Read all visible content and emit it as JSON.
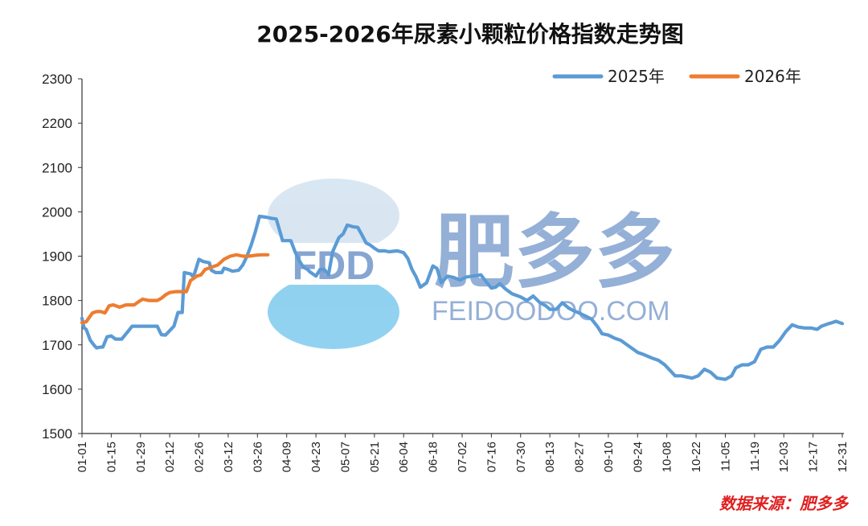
{
  "chart_data": {
    "type": "line",
    "title": "2025-2026年尿素小颗粒价格指数走势图",
    "xlabel": "",
    "ylabel": "",
    "ylim": [
      1500,
      2300
    ],
    "yticks": [
      1500,
      1600,
      1700,
      1800,
      1900,
      2000,
      2100,
      2200,
      2300
    ],
    "x_axis_type": "month-day",
    "xticks": [
      "01-01",
      "01-15",
      "01-29",
      "02-12",
      "02-26",
      "03-12",
      "03-26",
      "04-09",
      "04-23",
      "05-07",
      "05-21",
      "06-04",
      "06-18",
      "07-02",
      "07-16",
      "07-30",
      "08-13",
      "08-27",
      "09-10",
      "09-24",
      "10-08",
      "10-22",
      "11-05",
      "11-19",
      "12-03",
      "12-17",
      "12-31"
    ],
    "grid": false,
    "legend_position": "top-right",
    "colors": {
      "2025年": "#5b9bd5",
      "2026年": "#ed7d31"
    },
    "series": [
      {
        "name": "2025年",
        "points": [
          [
            "01-01",
            1760
          ],
          [
            "01-02",
            1738
          ],
          [
            "01-03",
            1735
          ],
          [
            "01-05",
            1710
          ],
          [
            "01-07",
            1698
          ],
          [
            "01-08",
            1693
          ],
          [
            "01-10",
            1695
          ],
          [
            "01-11",
            1695
          ],
          [
            "01-13",
            1718
          ],
          [
            "01-15",
            1720
          ],
          [
            "01-17",
            1713
          ],
          [
            "01-20",
            1713
          ],
          [
            "01-23",
            1730
          ],
          [
            "01-25",
            1742
          ],
          [
            "02-01",
            1742
          ],
          [
            "02-06",
            1742
          ],
          [
            "02-08",
            1723
          ],
          [
            "02-10",
            1722
          ],
          [
            "02-14",
            1742
          ],
          [
            "02-16",
            1773
          ],
          [
            "02-18",
            1773
          ],
          [
            "02-19",
            1863
          ],
          [
            "02-22",
            1860
          ],
          [
            "02-23",
            1855
          ],
          [
            "02-24",
            1862
          ],
          [
            "02-26",
            1893
          ],
          [
            "02-28",
            1888
          ],
          [
            "03-03",
            1885
          ],
          [
            "03-04",
            1868
          ],
          [
            "03-06",
            1863
          ],
          [
            "03-09",
            1863
          ],
          [
            "03-10",
            1873
          ],
          [
            "03-12",
            1870
          ],
          [
            "03-14",
            1866
          ],
          [
            "03-17",
            1868
          ],
          [
            "03-19",
            1880
          ],
          [
            "03-21",
            1900
          ],
          [
            "03-23",
            1925
          ],
          [
            "03-25",
            1955
          ],
          [
            "03-27",
            1990
          ],
          [
            "03-30",
            1988
          ],
          [
            "04-02",
            1985
          ],
          [
            "04-04",
            1984
          ],
          [
            "04-06",
            1952
          ],
          [
            "04-07",
            1935
          ],
          [
            "04-09",
            1935
          ],
          [
            "04-11",
            1935
          ],
          [
            "04-13",
            1910
          ],
          [
            "04-15",
            1890
          ],
          [
            "04-17",
            1875
          ],
          [
            "04-19",
            1870
          ],
          [
            "04-20",
            1865
          ],
          [
            "04-23",
            1855
          ],
          [
            "04-25",
            1870
          ],
          [
            "04-27",
            1870
          ],
          [
            "04-29",
            1858
          ],
          [
            "05-01",
            1910
          ],
          [
            "05-04",
            1942
          ],
          [
            "05-06",
            1950
          ],
          [
            "05-08",
            1970
          ],
          [
            "05-11",
            1966
          ],
          [
            "05-13",
            1965
          ],
          [
            "05-15",
            1948
          ],
          [
            "05-17",
            1930
          ],
          [
            "05-19",
            1925
          ],
          [
            "05-21",
            1918
          ],
          [
            "05-23",
            1912
          ],
          [
            "05-26",
            1912
          ],
          [
            "05-28",
            1910
          ],
          [
            "06-01",
            1912
          ],
          [
            "06-04",
            1908
          ],
          [
            "06-06",
            1895
          ],
          [
            "06-08",
            1870
          ],
          [
            "06-10",
            1853
          ],
          [
            "06-12",
            1830
          ],
          [
            "06-15",
            1840
          ],
          [
            "06-18",
            1878
          ],
          [
            "06-20",
            1872
          ],
          [
            "06-22",
            1840
          ],
          [
            "06-25",
            1855
          ],
          [
            "06-28",
            1852
          ],
          [
            "07-01",
            1846
          ],
          [
            "07-04",
            1853
          ],
          [
            "07-07",
            1855
          ],
          [
            "07-11",
            1858
          ],
          [
            "07-13",
            1845
          ],
          [
            "07-16",
            1828
          ],
          [
            "07-18",
            1830
          ],
          [
            "07-20",
            1838
          ],
          [
            "07-23",
            1825
          ],
          [
            "07-26",
            1815
          ],
          [
            "07-30",
            1808
          ],
          [
            "08-02",
            1800
          ],
          [
            "08-05",
            1810
          ],
          [
            "08-08",
            1796
          ],
          [
            "08-11",
            1788
          ],
          [
            "08-13",
            1780
          ],
          [
            "08-16",
            1780
          ],
          [
            "08-19",
            1795
          ],
          [
            "08-22",
            1783
          ],
          [
            "08-24",
            1778
          ],
          [
            "08-27",
            1772
          ],
          [
            "08-30",
            1765
          ],
          [
            "09-02",
            1758
          ],
          [
            "09-05",
            1740
          ],
          [
            "09-07",
            1725
          ],
          [
            "09-10",
            1722
          ],
          [
            "09-13",
            1715
          ],
          [
            "09-16",
            1710
          ],
          [
            "09-19",
            1700
          ],
          [
            "09-22",
            1690
          ],
          [
            "09-24",
            1683
          ],
          [
            "09-27",
            1678
          ],
          [
            "10-01",
            1670
          ],
          [
            "10-04",
            1665
          ],
          [
            "10-07",
            1655
          ],
          [
            "10-10",
            1640
          ],
          [
            "10-12",
            1630
          ],
          [
            "10-15",
            1630
          ],
          [
            "10-17",
            1628
          ],
          [
            "10-20",
            1625
          ],
          [
            "10-23",
            1630
          ],
          [
            "10-26",
            1645
          ],
          [
            "10-29",
            1638
          ],
          [
            "11-01",
            1625
          ],
          [
            "11-05",
            1622
          ],
          [
            "11-08",
            1630
          ],
          [
            "11-10",
            1648
          ],
          [
            "11-13",
            1655
          ],
          [
            "11-16",
            1655
          ],
          [
            "11-19",
            1662
          ],
          [
            "11-22",
            1690
          ],
          [
            "11-25",
            1695
          ],
          [
            "11-28",
            1695
          ],
          [
            "12-01",
            1710
          ],
          [
            "12-04",
            1730
          ],
          [
            "12-07",
            1745
          ],
          [
            "12-10",
            1740
          ],
          [
            "12-13",
            1738
          ],
          [
            "12-16",
            1738
          ],
          [
            "12-19",
            1735
          ],
          [
            "12-21",
            1742
          ],
          [
            "12-24",
            1747
          ],
          [
            "12-26",
            1750
          ],
          [
            "12-28",
            1753
          ],
          [
            "12-31",
            1748
          ]
        ]
      },
      {
        "name": "2026年",
        "points": [
          [
            "01-01",
            1750
          ],
          [
            "01-03",
            1752
          ],
          [
            "01-06",
            1772
          ],
          [
            "01-08",
            1775
          ],
          [
            "01-10",
            1775
          ],
          [
            "01-12",
            1772
          ],
          [
            "01-14",
            1788
          ],
          [
            "01-16",
            1790
          ],
          [
            "01-19",
            1785
          ],
          [
            "01-22",
            1790
          ],
          [
            "01-26",
            1790
          ],
          [
            "01-28",
            1797
          ],
          [
            "01-30",
            1803
          ],
          [
            "02-02",
            1800
          ],
          [
            "02-06",
            1800
          ],
          [
            "02-08",
            1805
          ],
          [
            "02-10",
            1813
          ],
          [
            "02-12",
            1818
          ],
          [
            "02-15",
            1820
          ],
          [
            "02-18",
            1820
          ],
          [
            "02-20",
            1820
          ],
          [
            "02-22",
            1845
          ],
          [
            "02-25",
            1855
          ],
          [
            "02-27",
            1858
          ],
          [
            "03-01",
            1870
          ],
          [
            "03-04",
            1875
          ],
          [
            "03-07",
            1880
          ],
          [
            "03-10",
            1893
          ],
          [
            "03-13",
            1900
          ],
          [
            "03-16",
            1903
          ],
          [
            "03-19",
            1900
          ],
          [
            "03-22",
            1900
          ],
          [
            "03-25",
            1902
          ],
          [
            "03-28",
            1903
          ],
          [
            "03-31",
            1903
          ]
        ]
      }
    ],
    "source_note": "数据来源：肥多多"
  },
  "watermark": {
    "logo_text": "FDD",
    "brand_cn": "肥多多",
    "brand_url": "FEIDOODOO.COM"
  }
}
